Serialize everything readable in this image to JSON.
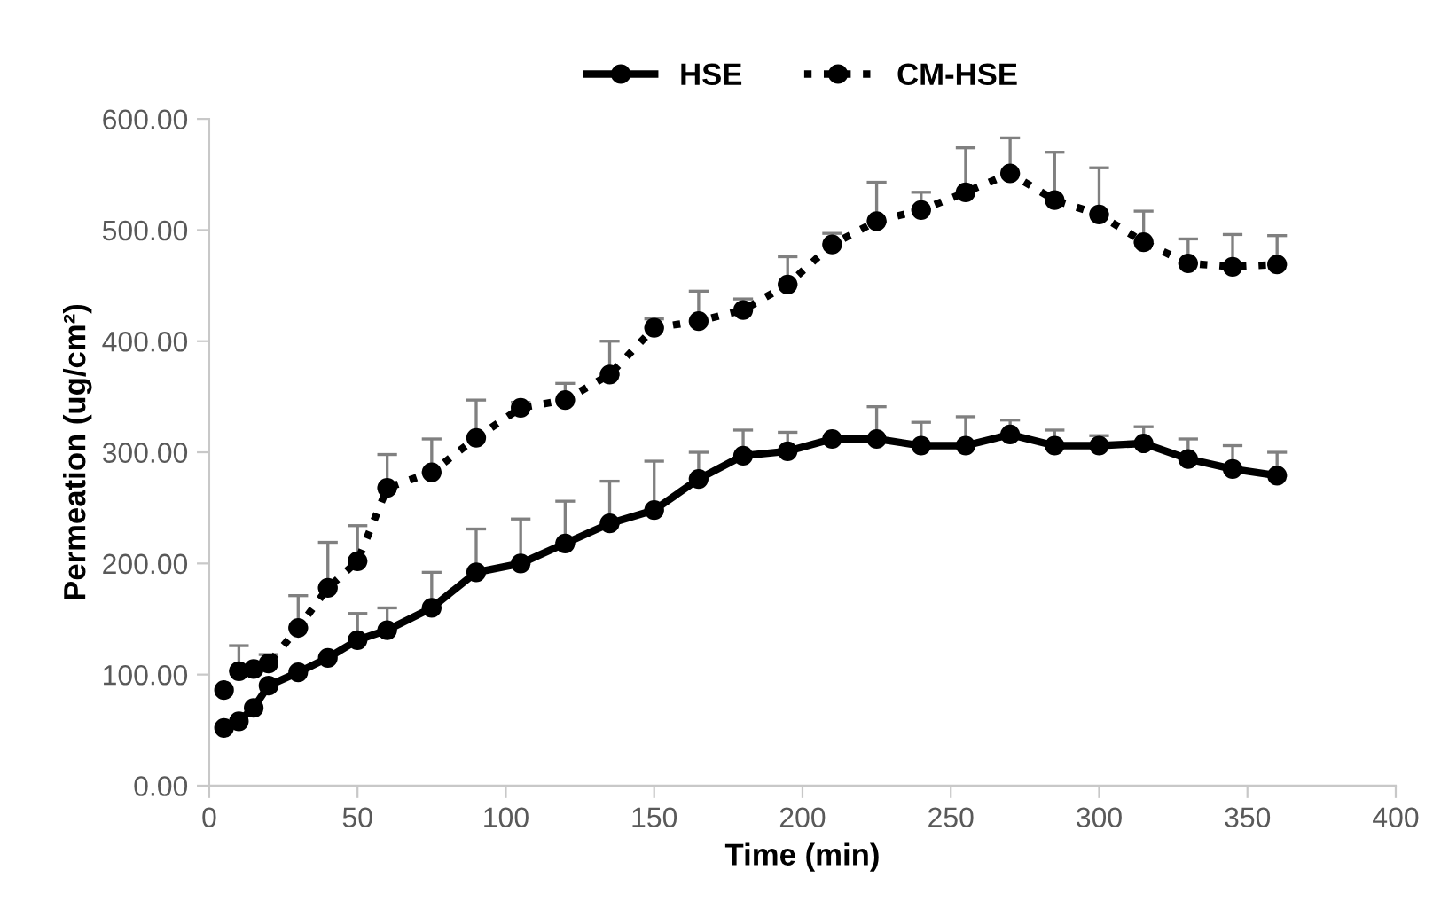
{
  "chart_data": {
    "type": "line",
    "xlabel": "Time (min)",
    "ylabel": "Permeation (ug/cm²)",
    "x": [
      5,
      10,
      15,
      20,
      30,
      40,
      50,
      60,
      75,
      90,
      105,
      120,
      135,
      150,
      165,
      180,
      195,
      210,
      225,
      240,
      255,
      270,
      285,
      300,
      315,
      330,
      345,
      360
    ],
    "xlim": [
      0,
      400
    ],
    "xticks": [
      0,
      50,
      100,
      150,
      200,
      250,
      300,
      350,
      400
    ],
    "ylim": [
      0,
      600
    ],
    "yticks": [
      {
        "value": 0,
        "label": "0.00"
      },
      {
        "value": 100,
        "label": "100.00"
      },
      {
        "value": 200,
        "label": "200.00"
      },
      {
        "value": 300,
        "label": "300.00"
      },
      {
        "value": 400,
        "label": "400.00"
      },
      {
        "value": 500,
        "label": "500.00"
      },
      {
        "value": 600,
        "label": "600.00"
      }
    ],
    "marker": "circle",
    "grid": false,
    "legend": "top",
    "series": [
      {
        "name": "HSE",
        "color": "#000000",
        "line_style": "solid",
        "values": [
          52,
          58,
          70,
          90,
          102,
          115,
          131,
          140,
          160,
          192,
          200,
          218,
          236,
          248,
          276,
          297,
          301,
          312,
          312,
          306,
          306,
          316,
          306,
          306,
          308,
          294,
          285,
          279
        ],
        "errors": [
          null,
          null,
          null,
          null,
          null,
          null,
          [
            131,
            155
          ],
          [
            140,
            160
          ],
          [
            160,
            192
          ],
          [
            192,
            231
          ],
          [
            200,
            240
          ],
          [
            218,
            256
          ],
          [
            236,
            274
          ],
          [
            248,
            292
          ],
          [
            276,
            300
          ],
          [
            297,
            320
          ],
          [
            301,
            318
          ],
          null,
          [
            312,
            341
          ],
          [
            306,
            327
          ],
          [
            306,
            332
          ],
          [
            316,
            329
          ],
          [
            306,
            320
          ],
          [
            306,
            315
          ],
          [
            308,
            323
          ],
          [
            294,
            312
          ],
          [
            285,
            306
          ],
          [
            279,
            300
          ]
        ]
      },
      {
        "name": "CM-HSE",
        "color": "#000000",
        "line_style": "dotted",
        "values": [
          86,
          103,
          105,
          110,
          142,
          178,
          202,
          268,
          282,
          313,
          340,
          347,
          370,
          412,
          418,
          428,
          451,
          487,
          508,
          518,
          534,
          551,
          527,
          514,
          489,
          470,
          467,
          469
        ],
        "errors": [
          null,
          [
            103,
            126
          ],
          null,
          [
            110,
            118
          ],
          [
            142,
            171
          ],
          [
            178,
            219
          ],
          [
            202,
            234
          ],
          [
            268,
            298
          ],
          [
            282,
            312
          ],
          [
            313,
            347
          ],
          [
            340,
            345
          ],
          [
            347,
            362
          ],
          [
            370,
            400
          ],
          [
            412,
            420
          ],
          [
            418,
            445
          ],
          [
            428,
            438
          ],
          [
            451,
            476
          ],
          [
            487,
            497
          ],
          [
            508,
            543
          ],
          [
            518,
            534
          ],
          [
            534,
            574
          ],
          [
            551,
            583
          ],
          [
            527,
            570
          ],
          [
            514,
            556
          ],
          [
            489,
            517
          ],
          [
            470,
            492
          ],
          [
            467,
            496
          ],
          [
            469,
            495
          ]
        ]
      }
    ]
  }
}
